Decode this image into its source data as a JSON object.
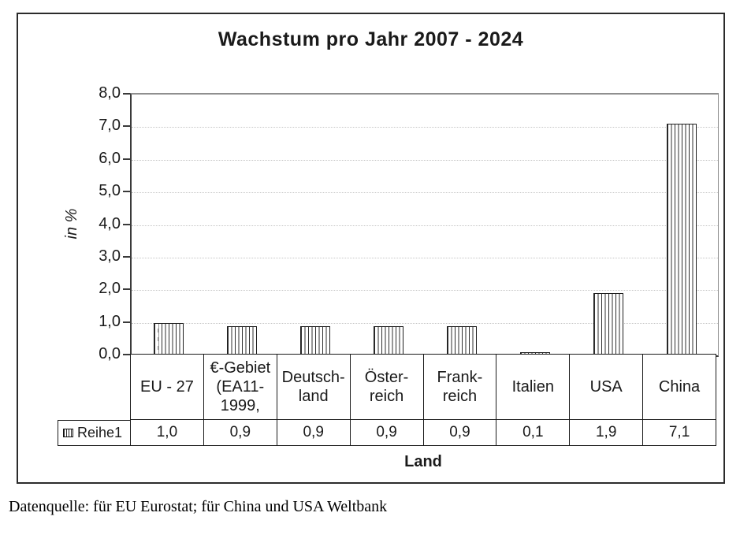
{
  "title": "Wachstum pro Jahr 2007 - 2024",
  "footer_note": "Datenquelle: für EU Eurostat; für China und USA Weltbank",
  "chart_data": {
    "type": "bar",
    "title": "Wachstum pro Jahr 2007 - 2024",
    "xlabel": "Land",
    "ylabel": "in %",
    "ylim": [
      0,
      8
    ],
    "ytick_step": 1,
    "ytick_labels": [
      "0,0",
      "1,0",
      "2,0",
      "3,0",
      "4,0",
      "5,0",
      "6,0",
      "7,0",
      "8,0"
    ],
    "grid": "horizontal-dotted",
    "legend_position": "table-left",
    "bar_fill": "vertical-hatch",
    "categories": [
      "EU - 27",
      "€-Gebiet (EA11-1999,",
      "Deutschland",
      "Österreich",
      "Frankreich",
      "Italien",
      "USA",
      "China"
    ],
    "category_display": [
      "EU - 27",
      "€-Gebiet\n(EA11-\n1999,",
      "Deutsch-\nland",
      "Öster-\nreich",
      "Frank-\nreich",
      "Italien",
      "USA",
      "China"
    ],
    "series": [
      {
        "name": "Reihe1",
        "values": [
          1.0,
          0.9,
          0.9,
          0.9,
          0.9,
          0.1,
          1.9,
          7.1
        ],
        "value_labels": [
          "1,0",
          "0,9",
          "0,9",
          "0,9",
          "0,9",
          "0,1",
          "1,9",
          "7,1"
        ]
      }
    ]
  }
}
